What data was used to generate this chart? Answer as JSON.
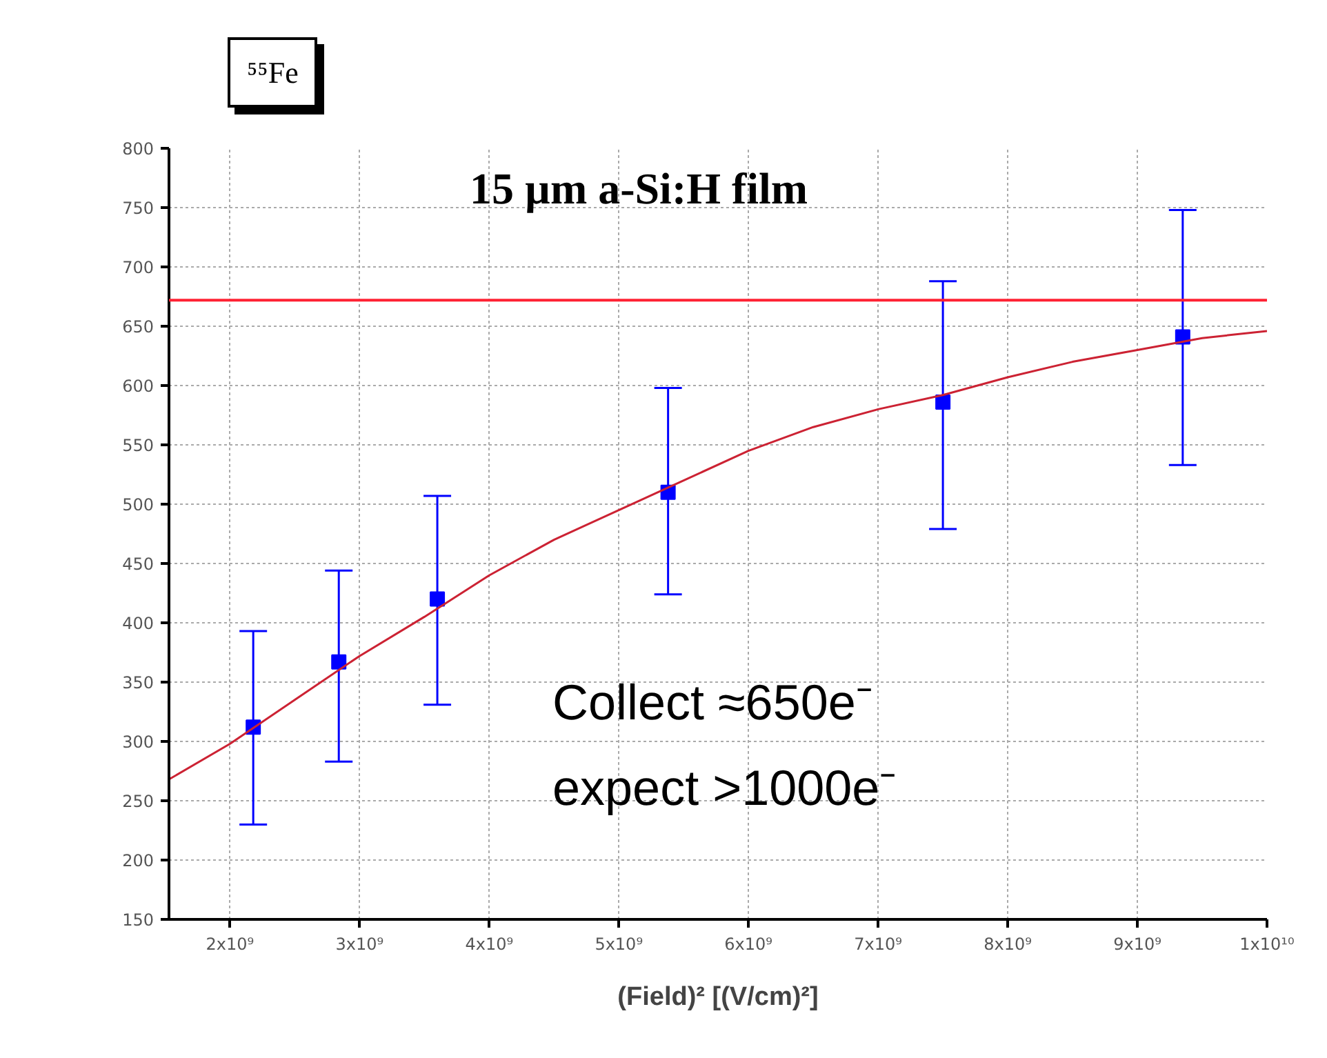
{
  "chart_data": {
    "type": "scatter",
    "xlabel": "(Field)² [(V/cm)²]",
    "x": [
      2180000000.0,
      2840000000.0,
      3600000000.0,
      5380000000.0,
      7500000000.0,
      9350000000.0
    ],
    "series": [
      {
        "color": "#0000ff",
        "marker": "square",
        "values": [
          312,
          367,
          420,
          510,
          586,
          641
        ],
        "errors": [
          [
            230,
            393
          ],
          [
            283,
            444
          ],
          [
            331,
            507
          ],
          [
            424,
            598
          ],
          [
            479,
            688
          ],
          [
            533,
            748
          ]
        ]
      },
      {
        "type": "line",
        "color": "#cc2233",
        "marker": "none",
        "x": [
          1530000000.0,
          2000000000.0,
          2500000000.0,
          3000000000.0,
          3500000000.0,
          4000000000.0,
          4500000000.0,
          5000000000.0,
          5500000000.0,
          6000000000.0,
          6500000000.0,
          7000000000.0,
          7500000000.0,
          8000000000.0,
          8500000000.0,
          9000000000.0,
          9500000000.0,
          10000000000.0
        ],
        "values": [
          268,
          298,
          335,
          372,
          405,
          440,
          470,
          495,
          520,
          545,
          565,
          580,
          592,
          607,
          620,
          630,
          640,
          646
        ]
      }
    ],
    "ref_lines": [
      {
        "axis": "y",
        "value": 672,
        "color": "#ff2233"
      }
    ],
    "xlim": [
      1530000000.0,
      10000000000.0
    ],
    "ylim": [
      150,
      800
    ],
    "xticks": [
      {
        "value": 2000000000.0,
        "label": "2x10⁹"
      },
      {
        "value": 3000000000.0,
        "label": "3x10⁹"
      },
      {
        "value": 4000000000.0,
        "label": "4x10⁹"
      },
      {
        "value": 5000000000.0,
        "label": "5x10⁹"
      },
      {
        "value": 6000000000.0,
        "label": "6x10⁹"
      },
      {
        "value": 7000000000.0,
        "label": "7x10⁹"
      },
      {
        "value": 8000000000.0,
        "label": "8x10⁹"
      },
      {
        "value": 9000000000.0,
        "label": "9x10⁹"
      },
      {
        "value": 10000000000.0,
        "label": "1x10¹⁰"
      }
    ],
    "yticks": [
      150,
      200,
      250,
      300,
      350,
      400,
      450,
      500,
      550,
      600,
      650,
      700,
      750,
      800
    ],
    "grid": true,
    "annotations": [
      "⁵⁵Fe",
      "15 µm a-Si:H film",
      "Collect ≈650e⁻",
      "expect >1000e⁻"
    ]
  }
}
